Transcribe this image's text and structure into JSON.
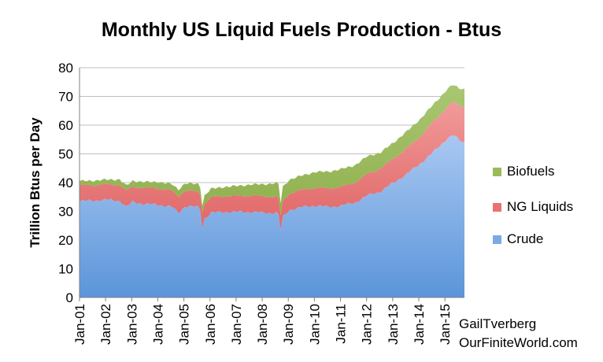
{
  "chart_data": {
    "type": "area",
    "stacked": true,
    "title": "Monthly US Liquid Fuels Production - Btus",
    "ylabel": "Trillion Btus per Day",
    "xlabel": "",
    "ylim": [
      0,
      80
    ],
    "y_ticks": [
      "0",
      "10",
      "20",
      "30",
      "40",
      "50",
      "60",
      "70",
      "80"
    ],
    "x_ticks": [
      "Jan-01",
      "Jan-02",
      "Jan-03",
      "Jan-04",
      "Jan-05",
      "Jan-06",
      "Jan-07",
      "Jan-08",
      "Jan-09",
      "Jan-10",
      "Jan-11",
      "Jan-12",
      "Jan-13",
      "Jan-14",
      "Jan-15"
    ],
    "x_start": "Jan-01",
    "x_end": "Sep-15",
    "grid": "horizontal",
    "legend_position": "right",
    "series": [
      {
        "name": "Crude",
        "color": "#7aaae6",
        "points": [
          [
            "Jan-01",
            33.5
          ],
          [
            "Jul-01",
            33.8
          ],
          [
            "Jan-02",
            34.0
          ],
          [
            "Jul-02",
            33.7
          ],
          [
            "Oct-02",
            31.5
          ],
          [
            "Jan-03",
            33.3
          ],
          [
            "Jul-03",
            32.5
          ],
          [
            "Jan-04",
            32.3
          ],
          [
            "Jul-04",
            31.5
          ],
          [
            "Oct-04",
            29.5
          ],
          [
            "Jan-05",
            31.8
          ],
          [
            "Jul-05",
            31.5
          ],
          [
            "Aug-05",
            30.5
          ],
          [
            "Sep-05",
            24.5
          ],
          [
            "Oct-05",
            27.5
          ],
          [
            "Jan-06",
            29.5
          ],
          [
            "Jul-06",
            29.8
          ],
          [
            "Jan-07",
            29.8
          ],
          [
            "Jul-07",
            29.8
          ],
          [
            "Jan-08",
            29.5
          ],
          [
            "Jul-08",
            29.5
          ],
          [
            "Aug-08",
            29.0
          ],
          [
            "Sep-08",
            23.5
          ],
          [
            "Oct-08",
            28.0
          ],
          [
            "Jan-09",
            30.5
          ],
          [
            "Jul-09",
            31.5
          ],
          [
            "Jan-10",
            32.0
          ],
          [
            "Jul-10",
            31.5
          ],
          [
            "Jan-11",
            32.0
          ],
          [
            "Jul-11",
            33.0
          ],
          [
            "Jan-12",
            35.5
          ],
          [
            "Jul-12",
            37.0
          ],
          [
            "Jan-13",
            40.0
          ],
          [
            "Jul-13",
            43.0
          ],
          [
            "Jan-14",
            46.5
          ],
          [
            "Jul-14",
            50.5
          ],
          [
            "Jan-15",
            55.0
          ],
          [
            "Apr-15",
            56.5
          ],
          [
            "Jul-15",
            55.0
          ],
          [
            "Sep-15",
            54.0
          ]
        ]
      },
      {
        "name": "NG Liquids",
        "color": "#e87373",
        "points": [
          [
            "Jan-01",
            5.5
          ],
          [
            "Jul-01",
            5.3
          ],
          [
            "Jan-02",
            5.3
          ],
          [
            "Jul-02",
            5.6
          ],
          [
            "Oct-02",
            5.6
          ],
          [
            "Jan-03",
            5.3
          ],
          [
            "Jul-03",
            5.6
          ],
          [
            "Jan-04",
            5.7
          ],
          [
            "Jul-04",
            5.6
          ],
          [
            "Oct-04",
            5.7
          ],
          [
            "Jan-05",
            5.4
          ],
          [
            "Jul-05",
            5.3
          ],
          [
            "Aug-05",
            5.3
          ],
          [
            "Sep-05",
            5.0
          ],
          [
            "Oct-05",
            5.2
          ],
          [
            "Jan-06",
            5.3
          ],
          [
            "Jul-06",
            5.5
          ],
          [
            "Jan-07",
            5.5
          ],
          [
            "Jul-07",
            5.7
          ],
          [
            "Jan-08",
            5.7
          ],
          [
            "Jul-08",
            5.5
          ],
          [
            "Aug-08",
            5.5
          ],
          [
            "Sep-08",
            5.0
          ],
          [
            "Oct-08",
            5.5
          ],
          [
            "Jan-09",
            5.7
          ],
          [
            "Jul-09",
            6.0
          ],
          [
            "Jan-10",
            6.2
          ],
          [
            "Jul-10",
            6.5
          ],
          [
            "Jan-11",
            6.5
          ],
          [
            "Jul-11",
            7.0
          ],
          [
            "Jan-12",
            7.5
          ],
          [
            "Jul-12",
            8.0
          ],
          [
            "Jan-13",
            8.5
          ],
          [
            "Jul-13",
            9.0
          ],
          [
            "Jan-14",
            9.5
          ],
          [
            "Jul-14",
            10.5
          ],
          [
            "Jan-15",
            11.0
          ],
          [
            "Apr-15",
            11.5
          ],
          [
            "Jul-15",
            12.0
          ],
          [
            "Sep-15",
            12.5
          ]
        ]
      },
      {
        "name": "Biofuels",
        "color": "#9bbb59",
        "points": [
          [
            "Jan-01",
            1.5
          ],
          [
            "Jul-01",
            1.6
          ],
          [
            "Jan-02",
            1.7
          ],
          [
            "Jul-02",
            1.8
          ],
          [
            "Oct-02",
            1.8
          ],
          [
            "Jan-03",
            2.0
          ],
          [
            "Jul-03",
            2.1
          ],
          [
            "Jan-04",
            2.2
          ],
          [
            "Jul-04",
            2.3
          ],
          [
            "Oct-04",
            2.4
          ],
          [
            "Jan-05",
            2.5
          ],
          [
            "Jul-05",
            2.7
          ],
          [
            "Aug-05",
            2.7
          ],
          [
            "Sep-05",
            2.7
          ],
          [
            "Oct-05",
            2.8
          ],
          [
            "Jan-06",
            3.0
          ],
          [
            "Jul-06",
            3.2
          ],
          [
            "Jan-07",
            3.5
          ],
          [
            "Jul-07",
            3.8
          ],
          [
            "Jan-08",
            4.2
          ],
          [
            "Jul-08",
            4.8
          ],
          [
            "Aug-08",
            4.9
          ],
          [
            "Sep-08",
            4.5
          ],
          [
            "Oct-08",
            5.0
          ],
          [
            "Jan-09",
            4.8
          ],
          [
            "Jul-09",
            5.0
          ],
          [
            "Jan-10",
            5.5
          ],
          [
            "Jul-10",
            5.8
          ],
          [
            "Jan-11",
            6.2
          ],
          [
            "Jul-11",
            6.0
          ],
          [
            "Jan-12",
            6.2
          ],
          [
            "Jul-12",
            5.5
          ],
          [
            "Jan-13",
            5.5
          ],
          [
            "Jul-13",
            5.8
          ],
          [
            "Jan-14",
            6.0
          ],
          [
            "Jul-14",
            6.0
          ],
          [
            "Jan-15",
            6.0
          ],
          [
            "Apr-15",
            6.0
          ],
          [
            "Jul-15",
            6.0
          ],
          [
            "Sep-15",
            6.0
          ]
        ]
      }
    ]
  },
  "legend": {
    "items": [
      {
        "label": "Biofuels",
        "color": "#9bbb59"
      },
      {
        "label": "NG Liquids",
        "color": "#e87373"
      },
      {
        "label": "Crude",
        "color": "#7aaae6"
      }
    ]
  },
  "credit": {
    "line1": "GailTverberg",
    "line2": "OurFiniteWorld.com"
  }
}
